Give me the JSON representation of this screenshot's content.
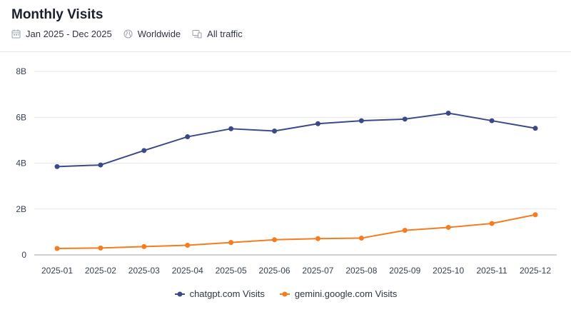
{
  "header": {
    "title": "Monthly Visits",
    "filters": {
      "date_range": "Jan 2025 - Dec 2025",
      "region": "Worldwide",
      "traffic": "All traffic"
    }
  },
  "icons": {
    "date": "calendar-icon",
    "region": "globe-icon",
    "traffic": "devices-icon"
  },
  "chart_data": {
    "type": "line",
    "title": "Monthly Visits",
    "categories": [
      "2025-01",
      "2025-02",
      "2025-03",
      "2025-04",
      "2025-05",
      "2025-06",
      "2025-07",
      "2025-08",
      "2025-09",
      "2025-10",
      "2025-11",
      "2025-12"
    ],
    "series": [
      {
        "name": "chatgpt.com Visits",
        "color": "#3b4a87",
        "values": [
          3.85,
          3.92,
          4.55,
          5.15,
          5.5,
          5.4,
          5.72,
          5.85,
          5.92,
          6.18,
          5.85,
          5.52
        ]
      },
      {
        "name": "gemini.google.com Visits",
        "color": "#f57c1f",
        "values": [
          0.28,
          0.3,
          0.36,
          0.42,
          0.54,
          0.66,
          0.71,
          0.73,
          1.07,
          1.2,
          1.37,
          1.75
        ]
      }
    ],
    "ylim": [
      0,
      8
    ],
    "yticks": [
      0,
      2,
      4,
      6,
      8
    ],
    "ytick_labels": [
      "0",
      "2B",
      "4B",
      "6B",
      "8B"
    ],
    "xlabel": "",
    "ylabel": "",
    "grid": true,
    "legend_position": "bottom-center"
  }
}
